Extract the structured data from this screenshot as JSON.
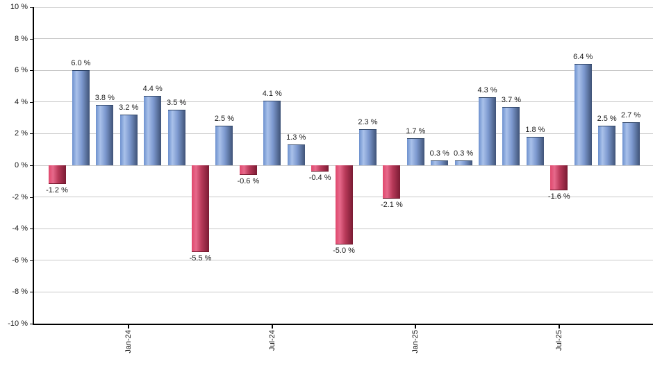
{
  "chart_data": {
    "type": "bar",
    "title": "",
    "xlabel": "",
    "ylabel": "",
    "unit": "%",
    "grid": true,
    "legend": false,
    "y_axis": {
      "range": [
        -10,
        10
      ],
      "ticks": [
        {
          "label": "10 %",
          "value": 10
        },
        {
          "label": "8 %",
          "value": 8
        },
        {
          "label": "6 %",
          "value": 6
        },
        {
          "label": "4 %",
          "value": 4
        },
        {
          "label": "2 %",
          "value": 2
        },
        {
          "label": "0 %",
          "value": 0
        },
        {
          "label": "-2 %",
          "value": -2
        },
        {
          "label": "-4 %",
          "value": -4
        },
        {
          "label": "-6 %",
          "value": -6
        },
        {
          "label": "-8 %",
          "value": -8
        },
        {
          "label": "-10 %",
          "value": -10
        }
      ]
    },
    "x_axis": {
      "ticks": [
        {
          "label": "Jan-24",
          "bar_index": 3
        },
        {
          "label": "Jul-24",
          "bar_index": 9
        },
        {
          "label": "Jan-25",
          "bar_index": 15
        },
        {
          "label": "Jul-25",
          "bar_index": 21
        }
      ]
    },
    "bars": [
      {
        "value": -1.2,
        "label": "-1.2 %"
      },
      {
        "value": 6.0,
        "label": "6.0 %"
      },
      {
        "value": 3.8,
        "label": "3.8 %"
      },
      {
        "value": 3.2,
        "label": "3.2 %"
      },
      {
        "value": 4.4,
        "label": "4.4 %"
      },
      {
        "value": 3.5,
        "label": "3.5 %"
      },
      {
        "value": -5.5,
        "label": "-5.5 %"
      },
      {
        "value": 2.5,
        "label": "2.5 %"
      },
      {
        "value": -0.6,
        "label": "-0.6 %"
      },
      {
        "value": 4.1,
        "label": "4.1 %"
      },
      {
        "value": 1.3,
        "label": "1.3 %"
      },
      {
        "value": -0.4,
        "label": "-0.4 %"
      },
      {
        "value": -5.0,
        "label": "-5.0 %"
      },
      {
        "value": 2.3,
        "label": "2.3 %"
      },
      {
        "value": -2.1,
        "label": "-2.1 %"
      },
      {
        "value": 1.7,
        "label": "1.7 %"
      },
      {
        "value": 0.3,
        "label": "0.3 %"
      },
      {
        "value": 0.3,
        "label": "0.3 %"
      },
      {
        "value": 4.3,
        "label": "4.3 %"
      },
      {
        "value": 3.7,
        "label": "3.7 %"
      },
      {
        "value": 1.8,
        "label": "1.8 %"
      },
      {
        "value": -1.6,
        "label": "-1.6 %"
      },
      {
        "value": 6.4,
        "label": "6.4 %"
      },
      {
        "value": 2.5,
        "label": "2.5 %"
      },
      {
        "value": 2.7,
        "label": "2.7 %"
      }
    ],
    "colors": {
      "positive_gradient": [
        "#6d91ce",
        "#a9c1ea",
        "#7d99cf",
        "#3f5377"
      ],
      "positive_edge": "#2f4568",
      "negative_gradient": [
        "#e0486d",
        "#e7698b",
        "#b93a5a",
        "#7a1b33"
      ],
      "negative_edge": "#6b1529",
      "gridline": "#c9c9c9",
      "axis": "#000000",
      "text": "#1a1a1a"
    }
  }
}
